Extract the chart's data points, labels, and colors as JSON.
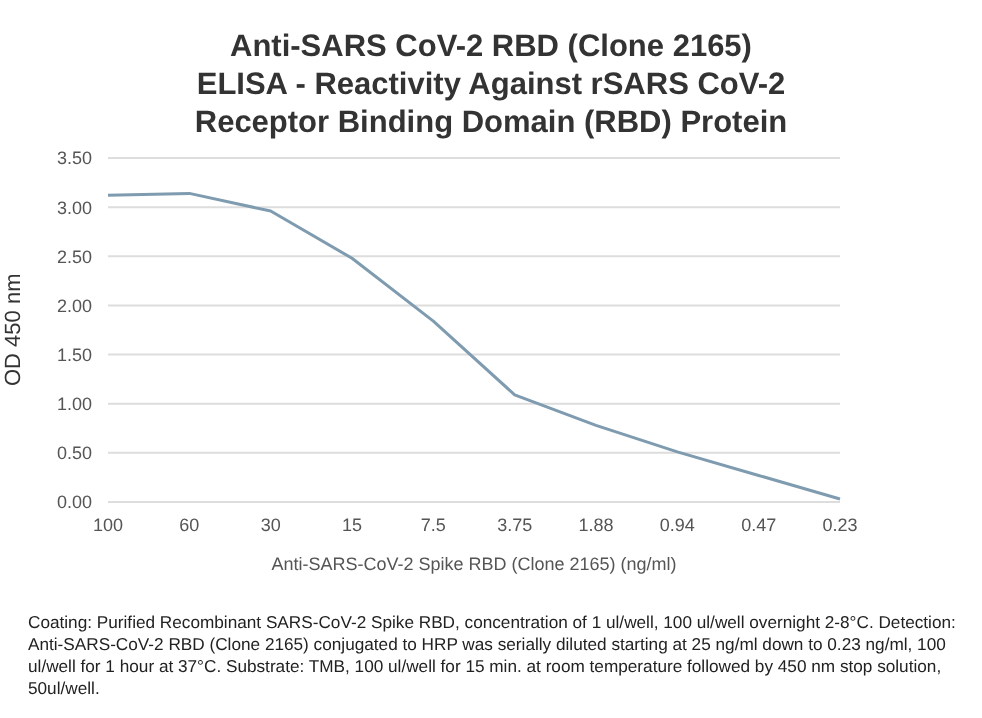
{
  "chart_data": {
    "type": "line",
    "title": "Anti-SARS CoV-2 RBD (Clone 2165) ELISA - Reactivity Against rSARS CoV-2 Receptor Binding Domain (RBD) Protein",
    "xlabel": "Anti-SARS-CoV-2 Spike RBD (Clone 2165) (ng/ml)",
    "ylabel": "OD 450 nm",
    "categories": [
      "100",
      "60",
      "30",
      "15",
      "7.5",
      "3.75",
      "1.88",
      "0.94",
      "0.47",
      "0.23"
    ],
    "series": [
      {
        "color": "#7f9bb0",
        "values": [
          3.12,
          3.14,
          2.96,
          2.48,
          1.84,
          1.09,
          0.78,
          0.51,
          0.27,
          0.03
        ]
      }
    ],
    "ylim": [
      0,
      3.5
    ],
    "yticks": [
      {
        "value": 0,
        "label": "0.00"
      },
      {
        "value": 0.5,
        "label": "0.50"
      },
      {
        "value": 1,
        "label": "1.00"
      },
      {
        "value": 1.5,
        "label": "1.50"
      },
      {
        "value": 2,
        "label": "2.00"
      },
      {
        "value": 2.5,
        "label": "2.50"
      },
      {
        "value": 3,
        "label": "3.00"
      },
      {
        "value": 3.5,
        "label": "3.50"
      }
    ],
    "grid": "y",
    "legend": false,
    "marker": "none",
    "line_style": "solid",
    "annotations": [
      "Coating: Purified Recombinant SARS-CoV-2 Spike RBD, concentration of 1 ul/well, 100 ul/well overnight 2-8°C. Detection: Anti-SARS-CoV-2 RBD (Clone 2165) conjugated to HRP was serially diluted starting at 25 ng/ml down to 0.23 ng/ml, 100 ul/well for 1 hour at 37°C. Substrate: TMB, 100 ul/well for 15 min. at room temperature followed by 450 nm stop solution, 50ul/well."
    ]
  }
}
